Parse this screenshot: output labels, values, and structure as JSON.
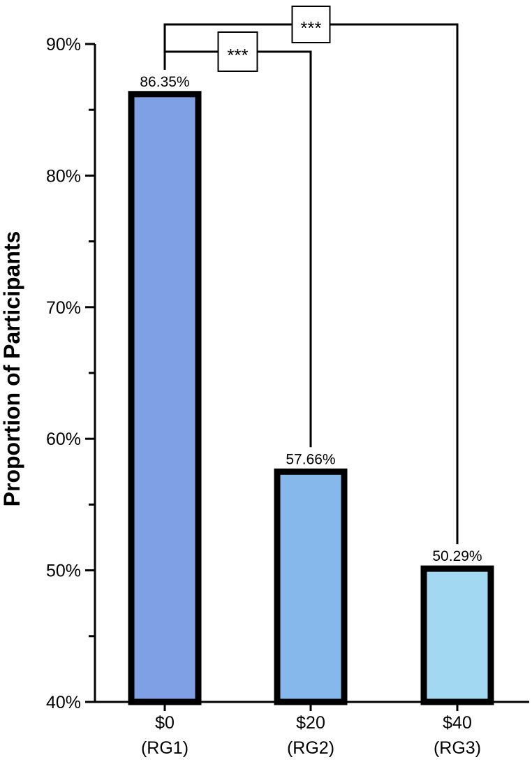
{
  "chart_data": {
    "type": "bar",
    "title": "",
    "xlabel": "",
    "ylabel": "Proportion of Participants",
    "ylim": [
      40,
      90
    ],
    "yticks_major": [
      40,
      50,
      60,
      70,
      80,
      90
    ],
    "ytick_labels": [
      "40%",
      "50%",
      "60%",
      "70%",
      "80%",
      "90%"
    ],
    "yticks_minor": [
      45,
      55,
      65,
      75,
      85
    ],
    "grid": false,
    "legend": "none",
    "categories": [
      {
        "line1": "$0",
        "line2": "(RG1)"
      },
      {
        "line1": "$20",
        "line2": "(RG2)"
      },
      {
        "line1": "$40",
        "line2": "(RG3)"
      }
    ],
    "values": [
      86.35,
      57.66,
      50.29
    ],
    "value_labels": [
      "86.35%",
      "57.66%",
      "50.29%"
    ],
    "colors": [
      "#7fa0e4",
      "#86b8ec",
      "#a2d8f2"
    ],
    "significance": [
      {
        "from": 0,
        "to": 1,
        "label": "***"
      },
      {
        "from": 0,
        "to": 2,
        "label": "***"
      }
    ]
  }
}
